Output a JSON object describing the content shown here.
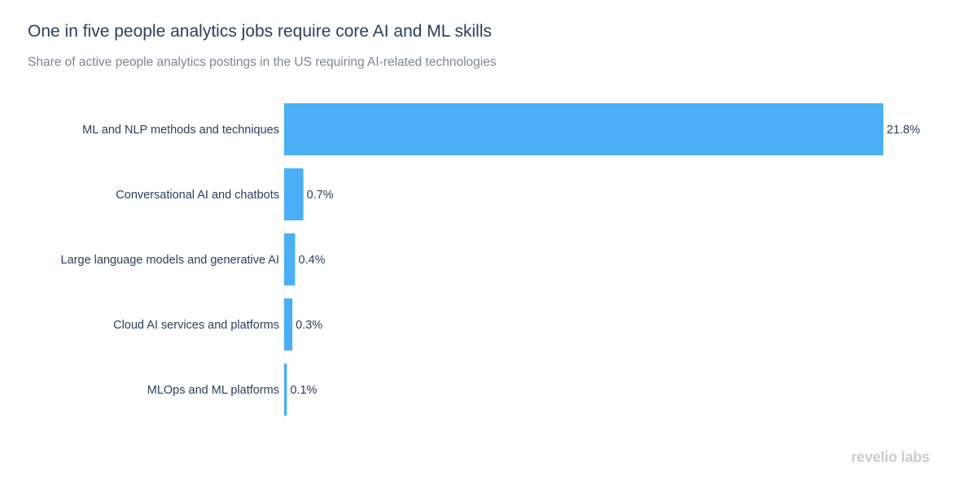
{
  "chart_data": {
    "type": "bar",
    "orientation": "horizontal",
    "title": "One in five people analytics jobs require core AI and ML skills",
    "subtitle": "Share of active people analytics postings in the US requiring AI-related technologies",
    "categories": [
      "ML and NLP methods and techniques",
      "Conversational AI and chatbots",
      "Large language models and generative AI",
      "Cloud AI services and platforms",
      "MLOps and ML platforms"
    ],
    "values": [
      21.8,
      0.7,
      0.4,
      0.3,
      0.1
    ],
    "value_labels": [
      "21.8%",
      "0.7%",
      "0.4%",
      "0.3%",
      "0.1%"
    ],
    "unit": "%",
    "xlim": [
      0,
      21.8
    ],
    "bar_color": "#4aaff4",
    "grid": false
  },
  "branding": {
    "logo_text": "revelio labs"
  }
}
